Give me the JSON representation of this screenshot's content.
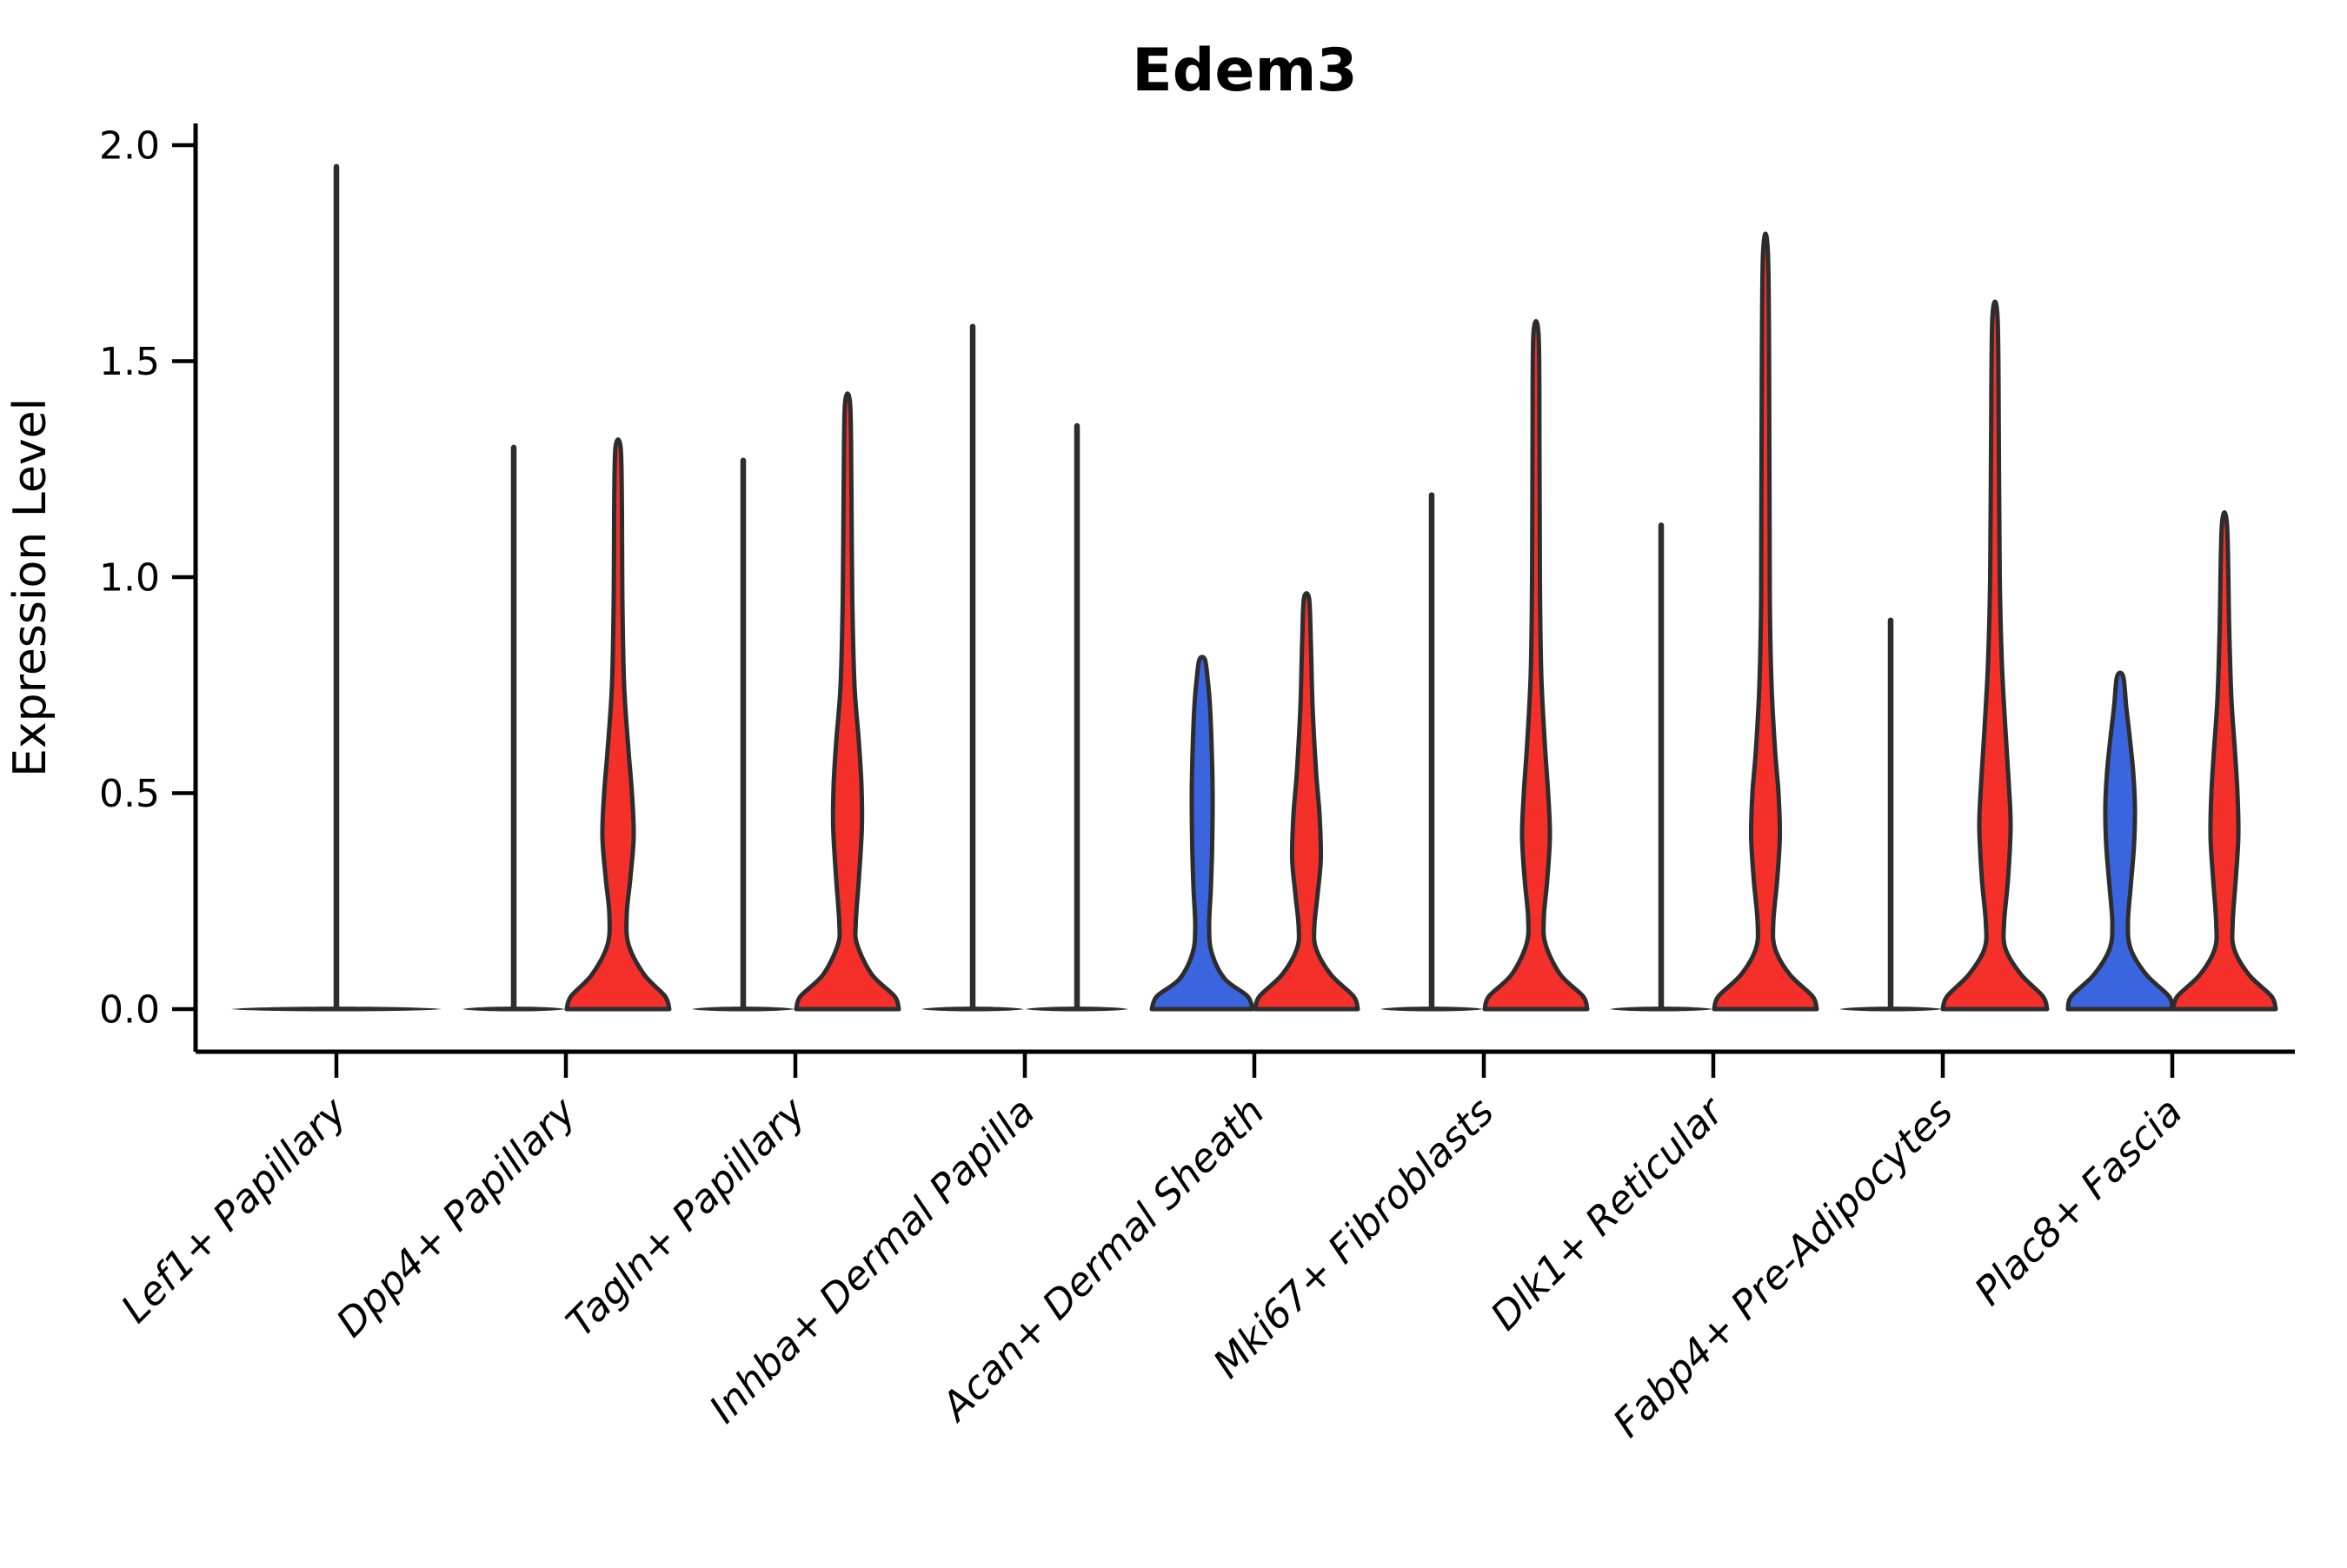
{
  "chart_data": {
    "type": "violin",
    "title": "Edem3",
    "ylabel": "Expression Level",
    "xlabel": "",
    "ylim": [
      -0.1,
      2.05
    ],
    "yticks": [
      0.0,
      0.5,
      1.0,
      1.5,
      2.0
    ],
    "ytick_labels": [
      "0.0",
      "0.5",
      "1.0",
      "1.5",
      "2.0"
    ],
    "grid": false,
    "legend": "none",
    "categories": [
      "Lef1+ Papillary",
      "Dpp4+ Papillary",
      "Tagln+ Papillary",
      "Inhba+ Dermal Papilla",
      "Acan+ Dermal Sheath",
      "Mki67+ Fibroblasts",
      "Dlk1+ Reticular",
      "Fabp4+ Pre-Adipocytes",
      "Plac8+ Fascia"
    ],
    "series": [
      {
        "name": "left-violin",
        "fill_color": "#3B65DF",
        "max_values": [
          1.95,
          1.3,
          1.27,
          1.58,
          0.81,
          1.19,
          1.12,
          0.9,
          0.77
        ]
      },
      {
        "name": "right-violin",
        "fill_color": "#F5302A",
        "max_values": [
          null,
          1.3,
          1.4,
          1.35,
          0.95,
          1.56,
          1.74,
          1.6,
          1.12
        ]
      }
    ],
    "colors": {
      "red_fill": "#F5302A",
      "blue_fill": "#3B65DF",
      "violin_outline": "#2D2D2D",
      "axis": "#000000",
      "background": "#ffffff"
    },
    "violins": [
      {
        "category_index": 0,
        "side": "full",
        "style": "flat-spike",
        "fill": null,
        "top": 1.95,
        "half_width": 121
      },
      {
        "category_index": 1,
        "side": "left",
        "style": "flat-spike",
        "fill": null,
        "top": 1.3,
        "half_width": 59
      },
      {
        "category_index": 1,
        "side": "right",
        "style": "violin",
        "fill": "red",
        "top": 1.3,
        "half_width": 59,
        "profile": [
          [
            0,
            59
          ],
          [
            0.03,
            54
          ],
          [
            0.08,
            30
          ],
          [
            0.15,
            12
          ],
          [
            0.22,
            10
          ],
          [
            0.3,
            14
          ],
          [
            0.4,
            18
          ],
          [
            0.5,
            16
          ],
          [
            0.6,
            12
          ],
          [
            0.75,
            7
          ],
          [
            0.95,
            5
          ],
          [
            1.15,
            4.5
          ],
          [
            1.3,
            3
          ]
        ]
      },
      {
        "category_index": 2,
        "side": "left",
        "style": "flat-spike",
        "fill": null,
        "top": 1.27,
        "half_width": 59
      },
      {
        "category_index": 2,
        "side": "right",
        "style": "violin",
        "fill": "red",
        "top": 1.4,
        "half_width": 59,
        "profile": [
          [
            0,
            59
          ],
          [
            0.03,
            54
          ],
          [
            0.08,
            28
          ],
          [
            0.15,
            11
          ],
          [
            0.2,
            9.5
          ],
          [
            0.3,
            13
          ],
          [
            0.42,
            16.5
          ],
          [
            0.52,
            16
          ],
          [
            0.62,
            13
          ],
          [
            0.75,
            8
          ],
          [
            0.95,
            5.5
          ],
          [
            1.2,
            4.5
          ],
          [
            1.4,
            3
          ]
        ]
      },
      {
        "category_index": 3,
        "side": "left",
        "style": "flat-spike",
        "fill": null,
        "top": 1.58,
        "half_width": 59
      },
      {
        "category_index": 3,
        "side": "right",
        "style": "flat-spike",
        "fill": null,
        "top": 1.35,
        "half_width": 59
      },
      {
        "category_index": 4,
        "side": "left",
        "style": "violin",
        "fill": "blue",
        "top": 0.81,
        "half_width": 59,
        "profile": [
          [
            0,
            58
          ],
          [
            0.03,
            52
          ],
          [
            0.07,
            26
          ],
          [
            0.13,
            11
          ],
          [
            0.19,
            8
          ],
          [
            0.28,
            10
          ],
          [
            0.38,
            11.5
          ],
          [
            0.5,
            12
          ],
          [
            0.6,
            11
          ],
          [
            0.7,
            9
          ],
          [
            0.77,
            6
          ],
          [
            0.81,
            3
          ]
        ]
      },
      {
        "category_index": 4,
        "side": "right",
        "style": "violin",
        "fill": "red",
        "top": 0.95,
        "half_width": 59,
        "profile": [
          [
            0,
            59
          ],
          [
            0.03,
            54
          ],
          [
            0.08,
            28
          ],
          [
            0.14,
            11
          ],
          [
            0.19,
            9
          ],
          [
            0.27,
            13
          ],
          [
            0.35,
            16.5
          ],
          [
            0.45,
            15
          ],
          [
            0.55,
            11
          ],
          [
            0.7,
            7
          ],
          [
            0.85,
            5
          ],
          [
            0.95,
            3
          ]
        ]
      },
      {
        "category_index": 5,
        "side": "left",
        "style": "flat-spike",
        "fill": null,
        "top": 1.19,
        "half_width": 59
      },
      {
        "category_index": 5,
        "side": "right",
        "style": "violin",
        "fill": "red",
        "top": 1.56,
        "half_width": 59,
        "profile": [
          [
            0,
            59
          ],
          [
            0.03,
            54
          ],
          [
            0.08,
            28
          ],
          [
            0.15,
            11
          ],
          [
            0.21,
            9
          ],
          [
            0.3,
            13
          ],
          [
            0.4,
            16
          ],
          [
            0.5,
            14
          ],
          [
            0.62,
            10
          ],
          [
            0.78,
            6
          ],
          [
            1.0,
            4.5
          ],
          [
            1.3,
            4
          ],
          [
            1.56,
            3
          ]
        ]
      },
      {
        "category_index": 6,
        "side": "left",
        "style": "flat-spike",
        "fill": null,
        "top": 1.12,
        "half_width": 59
      },
      {
        "category_index": 6,
        "side": "right",
        "style": "violin",
        "fill": "red",
        "top": 1.74,
        "half_width": 59,
        "profile": [
          [
            0,
            59
          ],
          [
            0.03,
            54
          ],
          [
            0.08,
            28
          ],
          [
            0.14,
            11
          ],
          [
            0.2,
            9
          ],
          [
            0.3,
            13.5
          ],
          [
            0.4,
            16.5
          ],
          [
            0.5,
            15
          ],
          [
            0.6,
            11
          ],
          [
            0.75,
            7
          ],
          [
            0.95,
            5
          ],
          [
            1.3,
            4.5
          ],
          [
            1.74,
            3
          ]
        ]
      },
      {
        "category_index": 7,
        "side": "left",
        "style": "flat-spike",
        "fill": null,
        "top": 0.9,
        "half_width": 59
      },
      {
        "category_index": 7,
        "side": "right",
        "style": "violin",
        "fill": "red",
        "top": 1.6,
        "half_width": 60,
        "profile": [
          [
            0,
            60
          ],
          [
            0.03,
            55
          ],
          [
            0.08,
            30
          ],
          [
            0.14,
            12
          ],
          [
            0.2,
            10.5
          ],
          [
            0.3,
            15
          ],
          [
            0.42,
            18
          ],
          [
            0.52,
            16
          ],
          [
            0.65,
            12
          ],
          [
            0.8,
            8
          ],
          [
            1.0,
            5.5
          ],
          [
            1.3,
            4.5
          ],
          [
            1.6,
            3
          ]
        ]
      },
      {
        "category_index": 8,
        "side": "left",
        "style": "violin",
        "fill": "blue",
        "top": 0.77,
        "half_width": 60,
        "profile": [
          [
            0,
            60
          ],
          [
            0.03,
            56
          ],
          [
            0.08,
            30
          ],
          [
            0.14,
            12
          ],
          [
            0.2,
            9
          ],
          [
            0.28,
            12
          ],
          [
            0.38,
            16
          ],
          [
            0.47,
            17
          ],
          [
            0.55,
            15
          ],
          [
            0.63,
            11
          ],
          [
            0.7,
            7
          ],
          [
            0.77,
            3.5
          ]
        ]
      },
      {
        "category_index": 8,
        "side": "right",
        "style": "violin",
        "fill": "red",
        "top": 1.12,
        "half_width": 59,
        "profile": [
          [
            0,
            59
          ],
          [
            0.03,
            54
          ],
          [
            0.08,
            28
          ],
          [
            0.14,
            11
          ],
          [
            0.2,
            9.5
          ],
          [
            0.3,
            13
          ],
          [
            0.4,
            16
          ],
          [
            0.5,
            15
          ],
          [
            0.6,
            12
          ],
          [
            0.72,
            8
          ],
          [
            0.88,
            5.5
          ],
          [
            1.12,
            3
          ]
        ]
      }
    ]
  }
}
